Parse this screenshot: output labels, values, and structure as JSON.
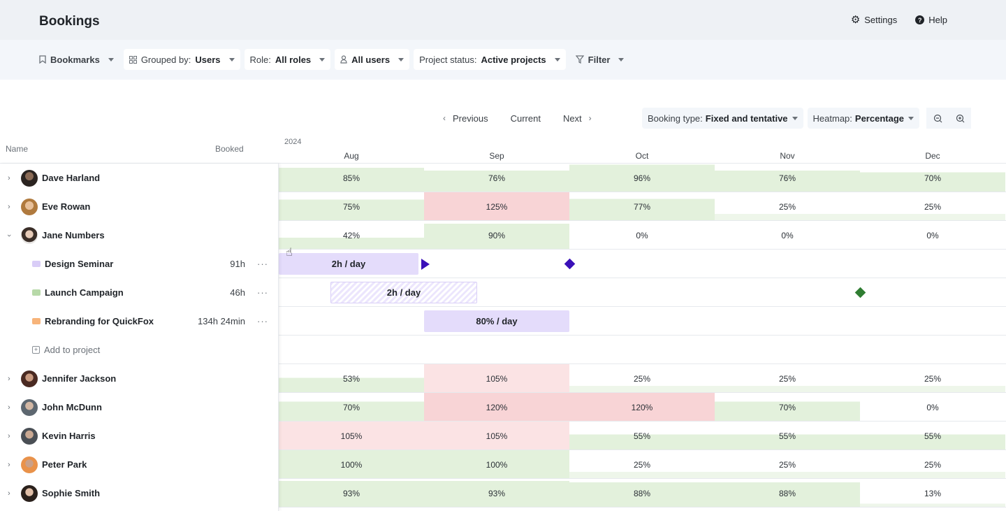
{
  "header": {
    "title": "Bookings",
    "settings": "Settings",
    "help": "Help"
  },
  "filters": {
    "bookmarks": "Bookmarks",
    "grouped_label": "Grouped by:",
    "grouped_value": "Users",
    "role_label": "Role:",
    "role_value": "All roles",
    "users_value": "All users",
    "status_label": "Project status:",
    "status_value": "Active projects",
    "filter": "Filter"
  },
  "nav": {
    "previous": "Previous",
    "current": "Current",
    "next": "Next",
    "booking_type_label": "Booking type:",
    "booking_type_value": "Fixed and tentative",
    "heatmap_label": "Heatmap:",
    "heatmap_value": "Percentage"
  },
  "grid": {
    "year": "2024",
    "name_header": "Name",
    "booked_header": "Booked",
    "months": [
      "Aug",
      "Sep",
      "Oct",
      "Nov",
      "Dec"
    ]
  },
  "users": [
    {
      "name": "Dave Harland",
      "values": [
        "85%",
        "76%",
        "96%",
        "76%",
        "70%"
      ]
    },
    {
      "name": "Eve Rowan",
      "values": [
        "75%",
        "125%",
        "77%",
        "25%",
        "25%"
      ]
    },
    {
      "name": "Jane Numbers",
      "values": [
        "42%",
        "90%",
        "0%",
        "0%",
        "0%"
      ]
    },
    {
      "name": "Jennifer Jackson",
      "values": [
        "53%",
        "105%",
        "25%",
        "25%",
        "25%"
      ]
    },
    {
      "name": "John McDunn",
      "values": [
        "70%",
        "120%",
        "120%",
        "70%",
        "0%"
      ]
    },
    {
      "name": "Kevin Harris",
      "values": [
        "105%",
        "105%",
        "55%",
        "55%",
        "55%"
      ]
    },
    {
      "name": "Peter Park",
      "values": [
        "100%",
        "100%",
        "25%",
        "25%",
        "25%"
      ]
    },
    {
      "name": "Sophie Smith",
      "values": [
        "93%",
        "93%",
        "88%",
        "88%",
        "13%"
      ]
    }
  ],
  "projects": [
    {
      "name": "Design Seminar",
      "hours": "91h",
      "bar_label": "2h / day",
      "color": "#d9cdf7"
    },
    {
      "name": "Launch Campaign",
      "hours": "46h",
      "bar_label": "2h / day",
      "color": "#b7d9a8"
    },
    {
      "name": "Rebranding for QuickFox",
      "hours": "134h 24min",
      "bar_label": "80% / day",
      "color": "#f7b47a"
    }
  ],
  "add_to_project": "Add to project",
  "colors": {
    "green": "#e3f1dc",
    "green_hatch": "#dcebd3",
    "red": "#f8d4d6",
    "red_light": "#fbe3e4",
    "milestone_purple": "#3a10b8",
    "milestone_green": "#2f7d32"
  }
}
